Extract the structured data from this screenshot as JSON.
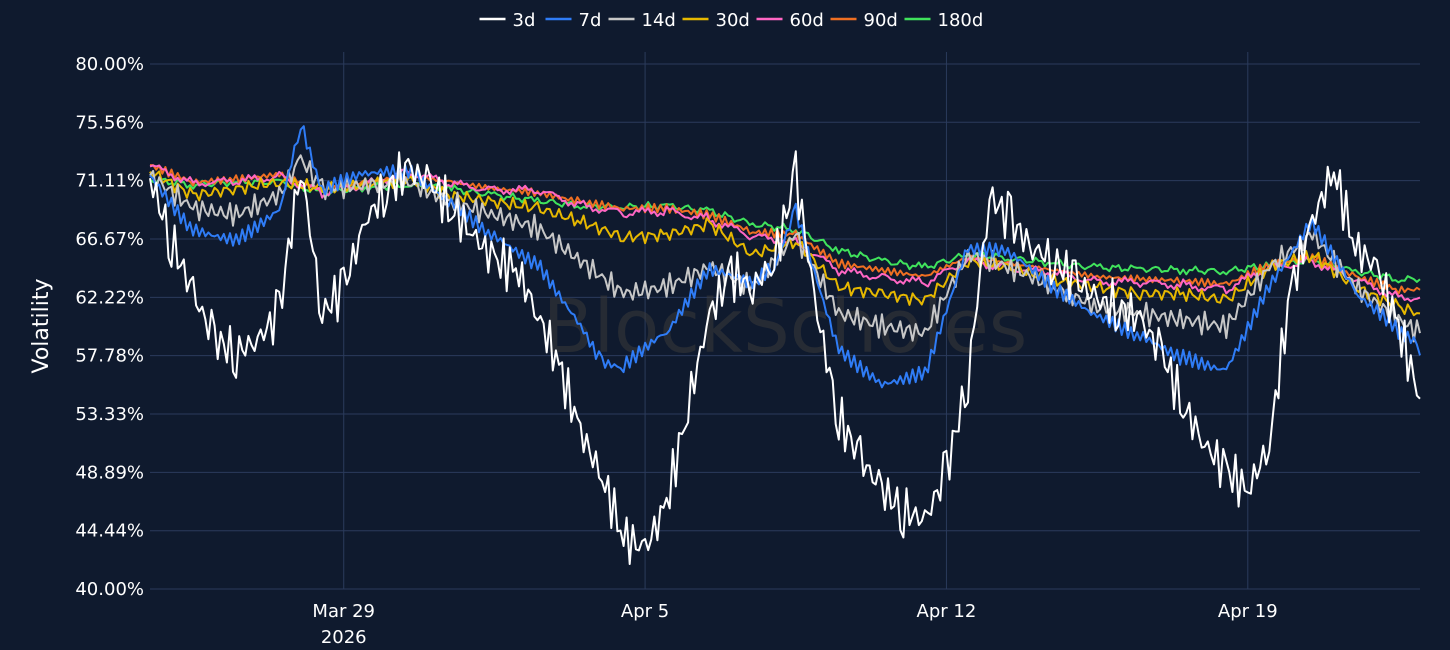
{
  "chart_data": {
    "type": "line",
    "title": "",
    "xlabel": "",
    "ylabel": "Volatility",
    "ylim": [
      40.0,
      80.0
    ],
    "y_ticks": [
      "40.00%",
      "44.44%",
      "48.89%",
      "53.33%",
      "57.78%",
      "62.22%",
      "66.67%",
      "71.11%",
      "75.56%",
      "80.00%"
    ],
    "x_ticks": [
      {
        "date": "2026-03-29",
        "label": "Mar 29",
        "sublabel": "2026"
      },
      {
        "date": "2026-04-05",
        "label": "Apr 5",
        "sublabel": ""
      },
      {
        "date": "2026-04-12",
        "label": "Apr 12",
        "sublabel": ""
      },
      {
        "date": "2026-04-19",
        "label": "Apr 19",
        "sublabel": ""
      }
    ],
    "xlim": [
      "2026-03-24T12:00",
      "2026-04-23T00:00"
    ],
    "grid": true,
    "legend_position": "top-center",
    "watermark": "BlockScholes",
    "series": [
      {
        "name": "3d",
        "color": "#ffffff",
        "x": [
          "2026-03-24T12:00",
          "2026-03-25T00:00",
          "2026-03-25T12:00",
          "2026-03-26T00:00",
          "2026-03-26T12:00",
          "2026-03-27T00:00",
          "2026-03-27T12:00",
          "2026-03-28T00:00",
          "2026-03-28T12:00",
          "2026-03-29T00:00",
          "2026-03-29T12:00",
          "2026-03-30T00:00",
          "2026-03-30T12:00",
          "2026-03-31T00:00",
          "2026-03-31T12:00",
          "2026-04-01T00:00",
          "2026-04-01T12:00",
          "2026-04-02T00:00",
          "2026-04-02T12:00",
          "2026-04-03T00:00",
          "2026-04-03T12:00",
          "2026-04-04T00:00",
          "2026-04-04T12:00",
          "2026-04-05T00:00",
          "2026-04-05T12:00",
          "2026-04-06T00:00",
          "2026-04-06T12:00",
          "2026-04-07T00:00",
          "2026-04-07T12:00",
          "2026-04-08T00:00",
          "2026-04-08T12:00",
          "2026-04-09T00:00",
          "2026-04-09T12:00",
          "2026-04-10T00:00",
          "2026-04-10T12:00",
          "2026-04-11T00:00",
          "2026-04-11T12:00",
          "2026-04-12T00:00",
          "2026-04-12T12:00",
          "2026-04-13T00:00",
          "2026-04-13T12:00",
          "2026-04-14T00:00",
          "2026-04-14T12:00",
          "2026-04-15T00:00",
          "2026-04-15T12:00",
          "2026-04-16T00:00",
          "2026-04-16T12:00",
          "2026-04-17T00:00",
          "2026-04-17T12:00",
          "2026-04-18T00:00",
          "2026-04-18T12:00",
          "2026-04-19T00:00",
          "2026-04-19T12:00",
          "2026-04-20T00:00",
          "2026-04-20T12:00",
          "2026-04-21T00:00",
          "2026-04-21T12:00",
          "2026-04-22T00:00",
          "2026-04-22T12:00",
          "2026-04-23T00:00"
        ],
        "y": [
          71.3,
          66.5,
          62.5,
          59.0,
          58.0,
          59.0,
          61.0,
          72.3,
          61.0,
          63.0,
          68.0,
          70.5,
          72.0,
          71.0,
          69.0,
          67.0,
          65.0,
          64.5,
          61.0,
          57.0,
          52.0,
          48.5,
          44.0,
          43.0,
          46.5,
          54.0,
          61.0,
          64.0,
          63.0,
          65.0,
          71.5,
          61.0,
          53.0,
          50.0,
          47.5,
          46.0,
          45.2,
          49.0,
          56.0,
          70.0,
          68.0,
          66.0,
          65.0,
          63.5,
          62.0,
          61.5,
          60.5,
          58.0,
          54.0,
          51.0,
          49.0,
          47.5,
          51.0,
          63.0,
          68.0,
          72.0,
          66.0,
          64.5,
          60.0,
          54.5
        ]
      },
      {
        "name": "7d",
        "color": "#2f7cf6",
        "x": [
          "2026-03-24T12:00",
          "2026-03-25T12:00",
          "2026-03-26T12:00",
          "2026-03-27T12:00",
          "2026-03-28T00:00",
          "2026-03-28T12:00",
          "2026-03-29T12:00",
          "2026-03-30T12:00",
          "2026-03-31T12:00",
          "2026-04-01T12:00",
          "2026-04-02T12:00",
          "2026-04-03T12:00",
          "2026-04-04T00:00",
          "2026-04-04T12:00",
          "2026-04-05T12:00",
          "2026-04-06T12:00",
          "2026-04-07T12:00",
          "2026-04-08T00:00",
          "2026-04-08T12:00",
          "2026-04-09T12:00",
          "2026-04-10T12:00",
          "2026-04-11T12:00",
          "2026-04-12T12:00",
          "2026-04-13T12:00",
          "2026-04-14T12:00",
          "2026-04-15T12:00",
          "2026-04-16T12:00",
          "2026-04-17T12:00",
          "2026-04-18T12:00",
          "2026-04-19T12:00",
          "2026-04-20T12:00",
          "2026-04-21T12:00",
          "2026-04-22T12:00",
          "2026-04-23T00:00"
        ],
        "y": [
          71.5,
          68.0,
          67.5,
          69.5,
          75.8,
          70.0,
          70.8,
          71.0,
          69.0,
          67.0,
          65.5,
          61.0,
          58.0,
          57.2,
          59.0,
          63.5,
          62.5,
          64.0,
          69.0,
          59.0,
          56.5,
          57.0,
          66.0,
          65.0,
          62.0,
          60.0,
          59.0,
          58.0,
          57.5,
          64.0,
          68.5,
          62.5,
          59.0,
          57.8
        ]
      },
      {
        "name": "14d",
        "color": "#c7c7c7",
        "x": [
          "2026-03-24T12:00",
          "2026-03-25T12:00",
          "2026-03-26T12:00",
          "2026-03-27T12:00",
          "2026-03-28T00:00",
          "2026-03-28T12:00",
          "2026-03-29T12:00",
          "2026-03-30T12:00",
          "2026-03-31T12:00",
          "2026-04-01T12:00",
          "2026-04-02T12:00",
          "2026-04-03T12:00",
          "2026-04-04T12:00",
          "2026-04-05T12:00",
          "2026-04-06T12:00",
          "2026-04-07T12:00",
          "2026-04-08T12:00",
          "2026-04-09T12:00",
          "2026-04-10T12:00",
          "2026-04-11T12:00",
          "2026-04-12T12:00",
          "2026-04-13T12:00",
          "2026-04-14T12:00",
          "2026-04-15T12:00",
          "2026-04-16T12:00",
          "2026-04-17T12:00",
          "2026-04-18T12:00",
          "2026-04-19T12:00",
          "2026-04-20T12:00",
          "2026-04-21T12:00",
          "2026-04-22T12:00",
          "2026-04-23T00:00"
        ],
        "y": [
          71.5,
          69.0,
          68.5,
          70.0,
          72.8,
          70.5,
          70.8,
          71.0,
          69.5,
          68.5,
          67.5,
          65.0,
          62.5,
          63.0,
          64.5,
          63.0,
          67.0,
          61.0,
          60.0,
          59.5,
          65.5,
          64.5,
          63.0,
          61.5,
          61.0,
          60.5,
          60.0,
          64.5,
          67.0,
          63.0,
          60.5,
          59.5
        ]
      },
      {
        "name": "30d",
        "color": "#e6b800",
        "x": [
          "2026-03-24T12:00",
          "2026-03-25T12:00",
          "2026-03-26T12:00",
          "2026-03-27T12:00",
          "2026-03-28T12:00",
          "2026-03-29T12:00",
          "2026-03-30T12:00",
          "2026-03-31T12:00",
          "2026-04-01T12:00",
          "2026-04-02T12:00",
          "2026-04-03T12:00",
          "2026-04-04T12:00",
          "2026-04-05T12:00",
          "2026-04-06T12:00",
          "2026-04-07T12:00",
          "2026-04-08T12:00",
          "2026-04-09T12:00",
          "2026-04-10T12:00",
          "2026-04-11T12:00",
          "2026-04-12T12:00",
          "2026-04-13T12:00",
          "2026-04-14T12:00",
          "2026-04-15T12:00",
          "2026-04-16T12:00",
          "2026-04-17T12:00",
          "2026-04-18T12:00",
          "2026-04-19T12:00",
          "2026-04-20T12:00",
          "2026-04-21T12:00",
          "2026-04-22T12:00",
          "2026-04-23T00:00"
        ],
        "y": [
          71.8,
          70.0,
          70.5,
          71.0,
          70.5,
          70.8,
          71.2,
          70.0,
          69.5,
          69.0,
          68.0,
          66.8,
          67.0,
          67.8,
          65.5,
          66.5,
          63.0,
          62.5,
          62.0,
          65.0,
          64.5,
          63.5,
          63.0,
          62.5,
          62.5,
          62.0,
          64.5,
          65.5,
          63.0,
          61.5,
          61.0
        ]
      },
      {
        "name": "60d",
        "color": "#ff66c4",
        "x": [
          "2026-03-24T12:00",
          "2026-03-25T12:00",
          "2026-03-26T12:00",
          "2026-03-27T12:00",
          "2026-03-28T12:00",
          "2026-03-29T12:00",
          "2026-03-30T12:00",
          "2026-03-31T12:00",
          "2026-04-01T12:00",
          "2026-04-02T12:00",
          "2026-04-03T12:00",
          "2026-04-04T12:00",
          "2026-04-05T12:00",
          "2026-04-06T12:00",
          "2026-04-07T12:00",
          "2026-04-08T12:00",
          "2026-04-09T12:00",
          "2026-04-10T12:00",
          "2026-04-11T12:00",
          "2026-04-12T12:00",
          "2026-04-13T12:00",
          "2026-04-14T12:00",
          "2026-04-15T12:00",
          "2026-04-16T12:00",
          "2026-04-17T12:00",
          "2026-04-18T12:00",
          "2026-04-19T12:00",
          "2026-04-20T12:00",
          "2026-04-21T12:00",
          "2026-04-22T12:00",
          "2026-04-23T00:00"
        ],
        "y": [
          72.2,
          71.0,
          71.0,
          71.5,
          70.2,
          70.8,
          71.8,
          70.8,
          70.5,
          70.3,
          69.3,
          68.6,
          68.8,
          68.2,
          66.8,
          66.5,
          64.2,
          63.8,
          63.3,
          65.0,
          64.5,
          64.0,
          63.5,
          63.3,
          63.2,
          62.8,
          64.5,
          65.0,
          63.5,
          62.3,
          62.2
        ]
      },
      {
        "name": "90d",
        "color": "#ef6f22",
        "x": [
          "2026-03-24T12:00",
          "2026-03-25T12:00",
          "2026-03-26T12:00",
          "2026-03-27T12:00",
          "2026-03-28T12:00",
          "2026-03-29T12:00",
          "2026-03-30T12:00",
          "2026-03-31T12:00",
          "2026-04-01T12:00",
          "2026-04-02T12:00",
          "2026-04-03T12:00",
          "2026-04-04T12:00",
          "2026-04-05T12:00",
          "2026-04-06T12:00",
          "2026-04-07T12:00",
          "2026-04-08T12:00",
          "2026-04-09T12:00",
          "2026-04-10T12:00",
          "2026-04-11T12:00",
          "2026-04-12T12:00",
          "2026-04-13T12:00",
          "2026-04-14T12:00",
          "2026-04-15T12:00",
          "2026-04-16T12:00",
          "2026-04-17T12:00",
          "2026-04-18T12:00",
          "2026-04-19T12:00",
          "2026-04-20T12:00",
          "2026-04-21T12:00",
          "2026-04-22T12:00",
          "2026-04-23T00:00"
        ],
        "y": [
          72.3,
          71.0,
          71.2,
          71.6,
          70.4,
          71.0,
          71.5,
          71.0,
          70.5,
          70.2,
          69.5,
          69.0,
          69.0,
          68.5,
          67.2,
          67.0,
          64.8,
          64.3,
          63.8,
          65.3,
          64.8,
          64.3,
          63.8,
          63.6,
          63.5,
          63.2,
          64.7,
          65.3,
          63.8,
          62.8,
          62.8
        ]
      },
      {
        "name": "180d",
        "color": "#40e35c",
        "x": [
          "2026-03-24T12:00",
          "2026-03-25T12:00",
          "2026-03-26T12:00",
          "2026-03-27T12:00",
          "2026-03-28T12:00",
          "2026-03-29T12:00",
          "2026-03-30T12:00",
          "2026-03-31T12:00",
          "2026-04-01T12:00",
          "2026-04-02T12:00",
          "2026-04-03T12:00",
          "2026-04-04T12:00",
          "2026-04-05T12:00",
          "2026-04-06T12:00",
          "2026-04-07T12:00",
          "2026-04-08T12:00",
          "2026-04-09T12:00",
          "2026-04-10T12:00",
          "2026-04-11T12:00",
          "2026-04-12T12:00",
          "2026-04-13T12:00",
          "2026-04-14T12:00",
          "2026-04-15T12:00",
          "2026-04-16T12:00",
          "2026-04-17T12:00",
          "2026-04-18T12:00",
          "2026-04-19T12:00",
          "2026-04-20T12:00",
          "2026-04-21T12:00",
          "2026-04-22T12:00",
          "2026-04-23T00:00"
        ],
        "y": [
          71.2,
          70.8,
          71.0,
          71.0,
          70.2,
          70.6,
          70.8,
          70.5,
          70.0,
          69.6,
          69.2,
          69.1,
          69.2,
          68.8,
          67.8,
          67.4,
          65.8,
          65.0,
          64.5,
          65.5,
          65.2,
          64.8,
          64.5,
          64.4,
          64.3,
          64.2,
          64.7,
          65.0,
          64.2,
          63.6,
          63.6
        ]
      }
    ]
  }
}
